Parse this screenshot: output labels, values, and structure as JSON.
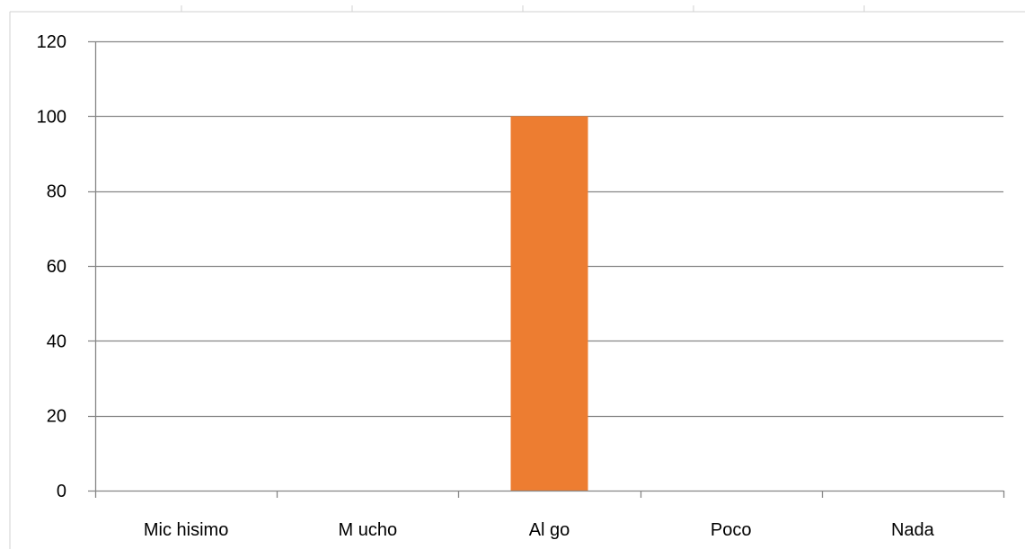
{
  "colors": {
    "bar": "#ED7D31",
    "gridline": "#868686",
    "axis": "#868686",
    "frame": "#D0D0D0",
    "text": "#000000"
  },
  "chart_data": {
    "type": "bar",
    "categories": [
      "Mic hisimo",
      "M ucho",
      "Al go",
      "Poco",
      "Nada"
    ],
    "values": [
      0,
      0,
      100,
      0,
      0
    ],
    "y_ticks": [
      "0",
      "20",
      "40",
      "60",
      "80",
      "100",
      "120"
    ],
    "ylim": [
      0,
      120
    ],
    "grid": true,
    "legend": "none"
  }
}
